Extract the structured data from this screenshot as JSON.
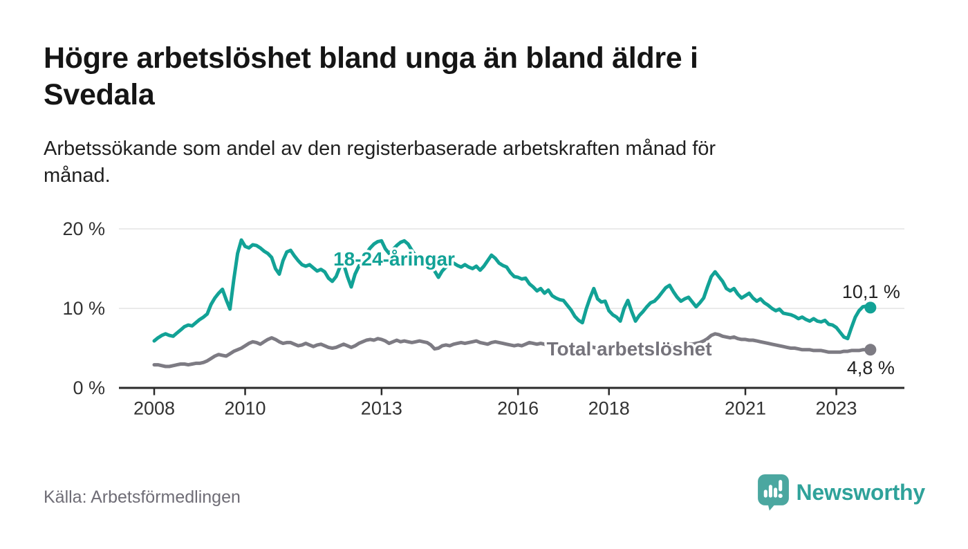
{
  "header": {
    "title_lines": [
      "Högre arbetslöshet bland unga än bland äldre i",
      "Svedala"
    ],
    "subtitle_lines": [
      "Arbetssökande som andel av den registerbaserade arbetskraften månad för",
      "månad."
    ]
  },
  "footer": {
    "source": "Källa: Arbetsförmedlingen",
    "brand": "Newsworthy"
  },
  "colors": {
    "youth_line": "#12a296",
    "total_line": "#7d7b83",
    "grid": "#e3e3e3",
    "axis": "#2a2a2a",
    "brand_bubble": "#4ba7a0",
    "brand_text": "#2fa29a"
  },
  "chart_data": {
    "type": "line",
    "title": "Högre arbetslöshet bland unga än bland äldre i Svedala",
    "subtitle": "Arbetssökande som andel av den registerbaserade arbetskraften månad för månad.",
    "x_unit": "month",
    "x_start": {
      "year": 2008,
      "month": 1
    },
    "x_end": {
      "year": 2023,
      "month": 10
    },
    "ylim": [
      0,
      20
    ],
    "grid": "horizontal",
    "yticks": [
      {
        "value": 0,
        "label": "0 %"
      },
      {
        "value": 10,
        "label": "10 %"
      },
      {
        "value": 20,
        "label": "20 %"
      }
    ],
    "xticks": [
      {
        "value": 2008,
        "label": "2008"
      },
      {
        "value": 2010,
        "label": "2010"
      },
      {
        "value": 2013,
        "label": "2013"
      },
      {
        "value": 2016,
        "label": "2016"
      },
      {
        "value": 2018,
        "label": "2018"
      },
      {
        "value": 2021,
        "label": "2021"
      },
      {
        "value": 2023,
        "label": "2023"
      }
    ],
    "series": [
      {
        "name": "18-24-åringar",
        "color": "#12a296",
        "end_label": "10,1 %",
        "end_value": 10.1,
        "values": [
          5.9,
          6.3,
          6.6,
          6.8,
          6.6,
          6.5,
          6.9,
          7.3,
          7.7,
          7.9,
          7.8,
          8.2,
          8.6,
          8.9,
          9.3,
          10.5,
          11.3,
          11.9,
          12.4,
          11.1,
          9.9,
          13.6,
          16.9,
          18.6,
          17.8,
          17.6,
          18.0,
          17.9,
          17.6,
          17.2,
          16.9,
          16.4,
          15.0,
          14.3,
          16.0,
          17.1,
          17.3,
          16.6,
          16.0,
          15.5,
          15.3,
          15.5,
          15.1,
          14.7,
          14.9,
          14.6,
          13.8,
          13.4,
          14.0,
          15.2,
          15.6,
          14.0,
          12.7,
          14.3,
          15.3,
          16.0,
          16.9,
          17.6,
          18.1,
          18.4,
          18.5,
          17.5,
          16.9,
          17.4,
          17.9,
          18.3,
          18.5,
          18.1,
          17.3,
          16.6,
          16.0,
          16.4,
          16.2,
          15.5,
          14.7,
          13.9,
          14.7,
          15.2,
          15.5,
          15.7,
          15.4,
          15.2,
          15.5,
          15.2,
          15.0,
          15.3,
          14.8,
          15.3,
          16.0,
          16.7,
          16.3,
          15.7,
          15.4,
          15.2,
          14.5,
          14.0,
          13.9,
          13.7,
          13.8,
          13.1,
          12.7,
          12.2,
          12.5,
          11.9,
          12.3,
          11.6,
          11.3,
          11.1,
          11.0,
          10.4,
          9.8,
          9.0,
          8.5,
          8.2,
          9.9,
          11.3,
          12.5,
          11.2,
          10.8,
          10.9,
          9.7,
          9.2,
          8.9,
          8.4,
          10.0,
          11.0,
          9.6,
          8.4,
          9.1,
          9.6,
          10.2,
          10.7,
          10.9,
          11.4,
          12.0,
          12.6,
          12.9,
          12.1,
          11.4,
          10.9,
          11.2,
          11.4,
          10.8,
          10.2,
          10.7,
          11.3,
          12.7,
          14.0,
          14.6,
          14.0,
          13.4,
          12.5,
          12.2,
          12.5,
          11.8,
          11.3,
          11.6,
          11.9,
          11.3,
          10.9,
          11.2,
          10.7,
          10.4,
          10.0,
          9.7,
          9.9,
          9.4,
          9.3,
          9.2,
          9.0,
          8.7,
          8.9,
          8.6,
          8.4,
          8.7,
          8.4,
          8.3,
          8.5,
          8.0,
          7.9,
          7.6,
          7.0,
          6.4,
          6.2,
          7.6,
          8.9,
          9.7,
          10.2,
          10.3,
          10.1
        ]
      },
      {
        "name": "Total arbetslöshet",
        "color": "#7d7b83",
        "end_label": "4,8 %",
        "end_value": 4.8,
        "values": [
          2.9,
          2.9,
          2.8,
          2.7,
          2.7,
          2.8,
          2.9,
          3.0,
          3.0,
          2.9,
          3.0,
          3.1,
          3.1,
          3.2,
          3.4,
          3.7,
          4.0,
          4.2,
          4.1,
          4.0,
          4.3,
          4.6,
          4.8,
          5.0,
          5.3,
          5.6,
          5.8,
          5.7,
          5.5,
          5.8,
          6.1,
          6.3,
          6.1,
          5.8,
          5.6,
          5.7,
          5.7,
          5.5,
          5.3,
          5.4,
          5.6,
          5.4,
          5.2,
          5.4,
          5.5,
          5.3,
          5.1,
          5.0,
          5.1,
          5.3,
          5.5,
          5.3,
          5.1,
          5.3,
          5.6,
          5.8,
          6.0,
          6.1,
          6.0,
          6.2,
          6.1,
          5.9,
          5.6,
          5.8,
          6.0,
          5.8,
          5.9,
          5.8,
          5.7,
          5.8,
          5.9,
          5.8,
          5.7,
          5.4,
          4.9,
          5.0,
          5.3,
          5.4,
          5.3,
          5.5,
          5.6,
          5.7,
          5.6,
          5.7,
          5.8,
          5.9,
          5.7,
          5.6,
          5.5,
          5.7,
          5.8,
          5.7,
          5.6,
          5.5,
          5.4,
          5.3,
          5.4,
          5.3,
          5.5,
          5.7,
          5.6,
          5.5,
          5.6,
          5.5,
          5.4,
          5.3,
          5.3,
          5.2,
          5.3,
          5.2,
          5.1,
          5.2,
          5.1,
          5.0,
          5.1,
          5.2,
          5.1,
          5.0,
          5.0,
          5.1,
          5.0,
          4.9,
          4.9,
          5.0,
          5.0,
          4.9,
          5.0,
          5.1,
          5.0,
          5.1,
          5.1,
          5.2,
          5.2,
          5.1,
          5.2,
          5.3,
          5.2,
          5.3,
          5.4,
          5.3,
          5.4,
          5.5,
          5.5,
          5.6,
          5.7,
          5.9,
          6.2,
          6.6,
          6.8,
          6.7,
          6.5,
          6.4,
          6.3,
          6.4,
          6.2,
          6.1,
          6.1,
          6.0,
          6.0,
          5.9,
          5.8,
          5.7,
          5.6,
          5.5,
          5.4,
          5.3,
          5.2,
          5.1,
          5.0,
          5.0,
          4.9,
          4.8,
          4.8,
          4.8,
          4.7,
          4.7,
          4.7,
          4.6,
          4.5,
          4.5,
          4.5,
          4.5,
          4.6,
          4.6,
          4.7,
          4.7,
          4.7,
          4.8,
          4.8,
          4.8
        ]
      }
    ]
  }
}
